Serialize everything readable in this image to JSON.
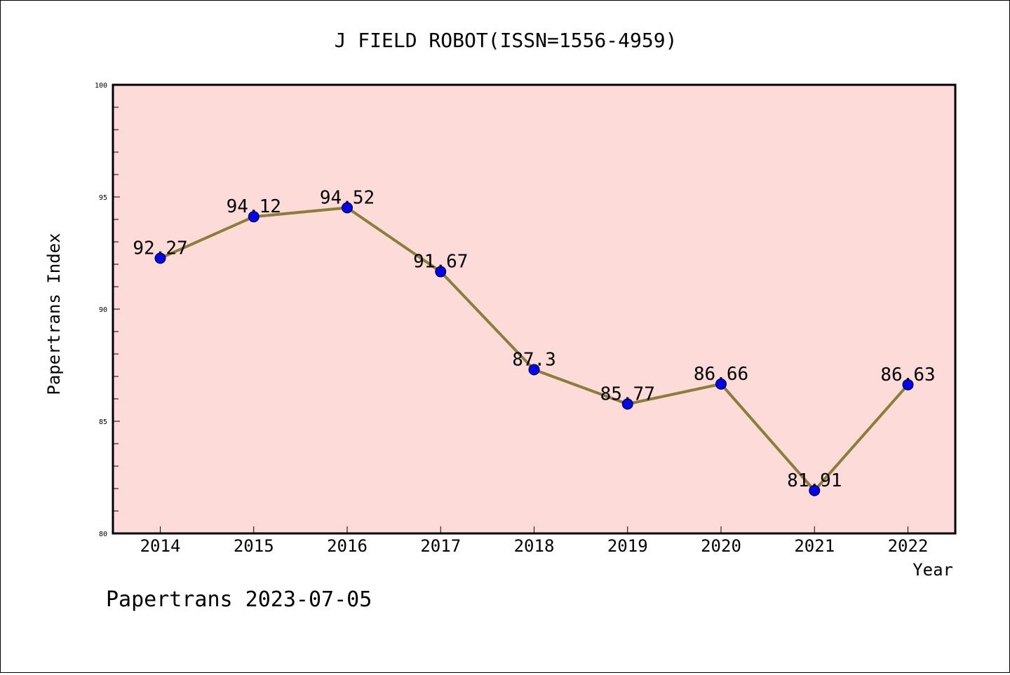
{
  "chart_data": {
    "type": "line",
    "title": "J FIELD ROBOT(ISSN=1556-4959)",
    "xlabel": "Year",
    "ylabel": "Papertrans Index",
    "footer": "Papertrans 2023-07-05",
    "categories": [
      "2014",
      "2015",
      "2016",
      "2017",
      "2018",
      "2019",
      "2020",
      "2021",
      "2022"
    ],
    "values": [
      92.27,
      94.12,
      94.52,
      91.67,
      87.3,
      85.77,
      86.66,
      81.91,
      86.63
    ],
    "data_labels": [
      "92.27",
      "94.12",
      "94.52",
      "91.67",
      "87.3",
      "85.77",
      "86.66",
      "81.91",
      "86.63"
    ],
    "ylim": [
      80,
      100
    ],
    "yticks": [
      "80",
      "85",
      "90",
      "95",
      "100"
    ],
    "grid": false,
    "colors": {
      "plot_background": "#fddbd8",
      "line": "#8b7d3a",
      "marker": "#0000ff"
    }
  }
}
